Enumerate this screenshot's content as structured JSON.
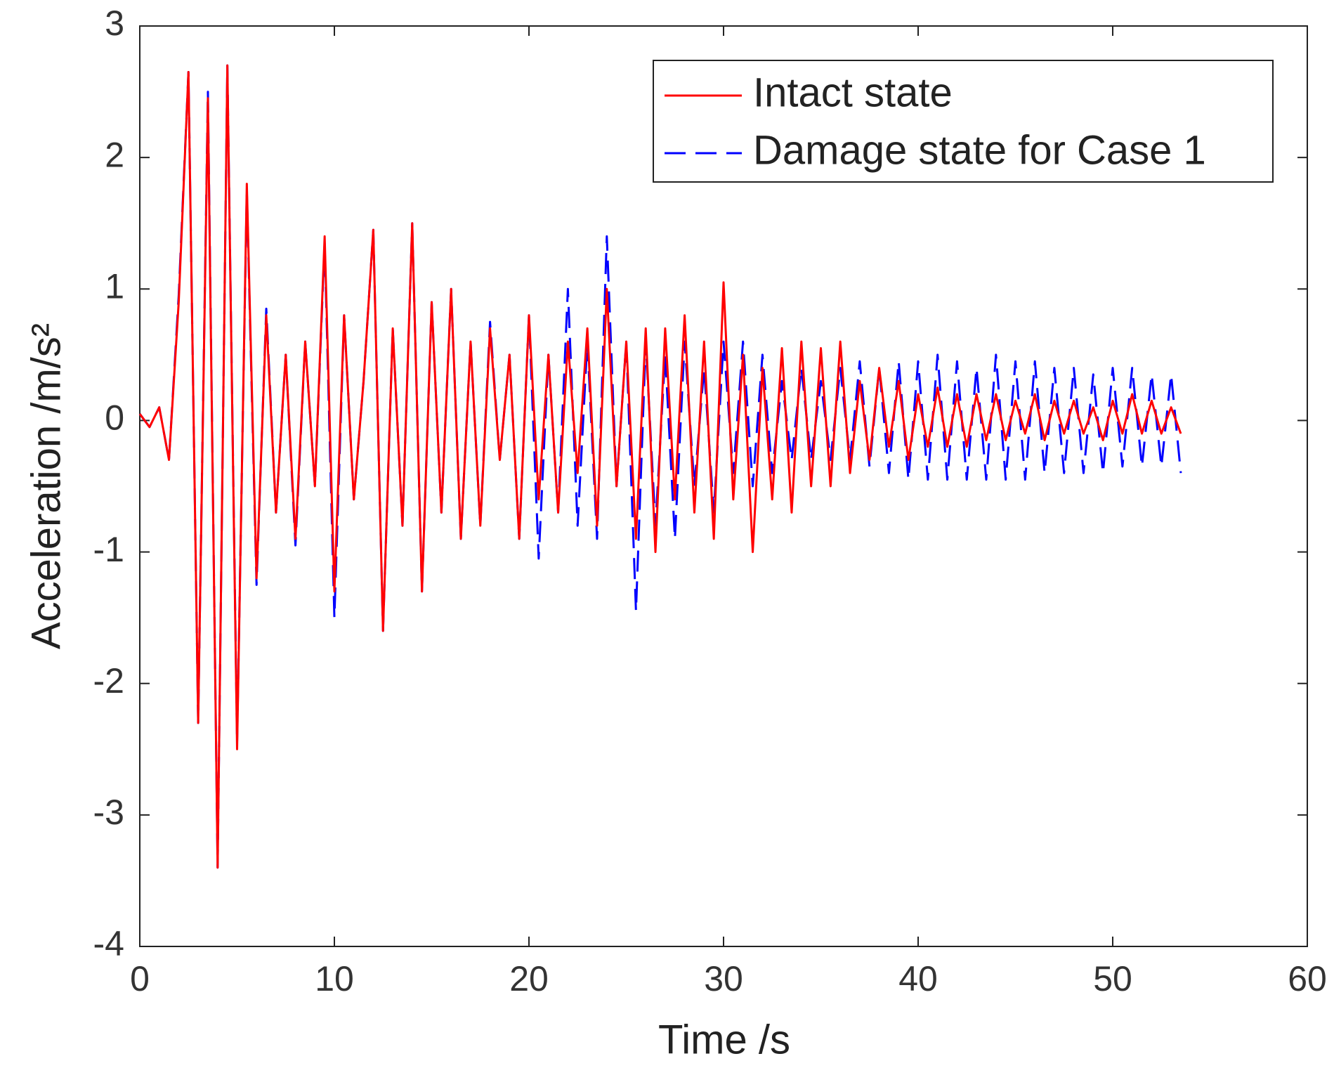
{
  "chart_data": {
    "type": "line",
    "xlabel": "Time /s",
    "ylabel": "Acceleration /m/s²",
    "x": [
      0,
      0.5,
      1,
      1.5,
      2,
      2.5,
      3,
      3.5,
      4,
      4.5,
      5,
      5.5,
      6,
      6.5,
      7,
      7.5,
      8,
      8.5,
      9,
      9.5,
      10,
      10.5,
      11,
      11.5,
      12,
      12.5,
      13,
      13.5,
      14,
      14.5,
      15,
      15.5,
      16,
      16.5,
      17,
      17.5,
      18,
      18.5,
      19,
      19.5,
      20,
      20.5,
      21,
      21.5,
      22,
      22.5,
      23,
      23.5,
      24,
      24.5,
      25,
      25.5,
      26,
      26.5,
      27,
      27.5,
      28,
      28.5,
      29,
      29.5,
      30,
      30.5,
      31,
      31.5,
      32,
      32.5,
      33,
      33.5,
      34,
      34.5,
      35,
      35.5,
      36,
      36.5,
      37,
      37.5,
      38,
      38.5,
      39,
      39.5,
      40,
      40.5,
      41,
      41.5,
      42,
      42.5,
      43,
      43.5,
      44,
      44.5,
      45,
      45.5,
      46,
      46.5,
      47,
      47.5,
      48,
      48.5,
      49,
      49.5,
      50,
      50.5,
      51,
      51.5,
      52,
      52.5,
      53,
      53.5
    ],
    "series": [
      {
        "name": "Intact state",
        "color": "#ff0000",
        "dashed": false,
        "values": [
          0.05,
          -0.05,
          0.1,
          -0.3,
          0.9,
          2.65,
          -2.3,
          2.45,
          -3.4,
          2.7,
          -2.5,
          1.8,
          -1.2,
          0.8,
          -0.7,
          0.5,
          -0.9,
          0.6,
          -0.5,
          1.4,
          -1.3,
          0.8,
          -0.6,
          0.3,
          1.45,
          -1.6,
          0.7,
          -0.8,
          1.5,
          -1.3,
          0.9,
          -0.7,
          1.0,
          -0.9,
          0.6,
          -0.8,
          0.7,
          -0.3,
          0.5,
          -0.9,
          0.8,
          -0.6,
          0.5,
          -0.7,
          0.6,
          -0.4,
          0.7,
          -0.8,
          1.0,
          -0.5,
          0.6,
          -0.9,
          0.7,
          -1.0,
          0.7,
          -0.6,
          0.8,
          -0.7,
          0.6,
          -0.9,
          1.05,
          -0.6,
          0.5,
          -1.0,
          0.4,
          -0.6,
          0.55,
          -0.7,
          0.6,
          -0.5,
          0.55,
          -0.5,
          0.6,
          -0.4,
          0.3,
          -0.3,
          0.4,
          -0.2,
          0.3,
          -0.3,
          0.2,
          -0.2,
          0.25,
          -0.2,
          0.2,
          -0.2,
          0.2,
          -0.15,
          0.2,
          -0.15,
          0.15,
          -0.1,
          0.2,
          -0.15,
          0.15,
          -0.1,
          0.15,
          -0.1,
          0.1,
          -0.15,
          0.15,
          -0.1,
          0.2,
          -0.1,
          0.15,
          -0.1,
          0.1,
          -0.1
        ]
      },
      {
        "name": "Damage state for Case 1",
        "color": "#0000ff",
        "dashed": true,
        "values": [
          0.05,
          -0.05,
          0.1,
          -0.3,
          0.95,
          2.65,
          -2.3,
          2.5,
          -3.4,
          2.7,
          -2.45,
          1.75,
          -1.25,
          0.85,
          -0.7,
          0.5,
          -0.95,
          0.6,
          -0.5,
          1.35,
          -1.5,
          0.8,
          -0.6,
          0.3,
          1.45,
          -1.6,
          0.7,
          -0.8,
          1.5,
          -1.3,
          0.9,
          -0.7,
          1.0,
          -0.9,
          0.6,
          -0.8,
          0.75,
          -0.3,
          0.5,
          -0.9,
          0.8,
          -1.05,
          0.5,
          -0.7,
          1.0,
          -0.8,
          0.6,
          -0.9,
          1.4,
          -0.5,
          0.6,
          -1.45,
          0.6,
          -0.8,
          0.5,
          -0.9,
          0.6,
          -0.5,
          0.4,
          -0.7,
          0.6,
          -0.4,
          0.6,
          -0.5,
          0.5,
          -0.4,
          0.3,
          -0.3,
          0.4,
          -0.3,
          0.3,
          -0.3,
          0.4,
          -0.3,
          0.45,
          -0.35,
          0.4,
          -0.4,
          0.45,
          -0.45,
          0.45,
          -0.45,
          0.5,
          -0.45,
          0.45,
          -0.45,
          0.4,
          -0.45,
          0.5,
          -0.45,
          0.45,
          -0.45,
          0.45,
          -0.4,
          0.4,
          -0.4,
          0.4,
          -0.4,
          0.35,
          -0.4,
          0.4,
          -0.35,
          0.4,
          -0.35,
          0.35,
          -0.35,
          0.35,
          -0.4
        ]
      }
    ],
    "xlim": [
      0,
      60
    ],
    "xticks": [
      0,
      10,
      20,
      30,
      40,
      50,
      60
    ],
    "ylim": [
      -4,
      3
    ],
    "yticks": [
      -4,
      -3,
      -2,
      -1,
      0,
      1,
      2,
      3
    ],
    "legend": "upper right",
    "grid": false
  }
}
